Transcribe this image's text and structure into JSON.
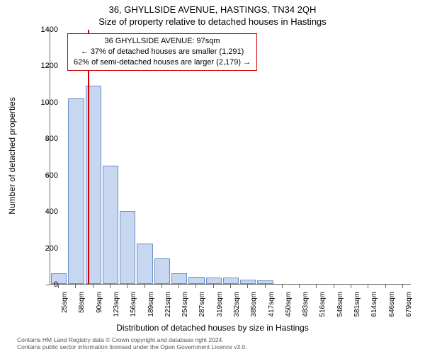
{
  "title_line1": "36, GHYLLSIDE AVENUE, HASTINGS, TN34 2QH",
  "title_line2": "Size of property relative to detached houses in Hastings",
  "info_box": {
    "line1": "36 GHYLLSIDE AVENUE: 97sqm",
    "line2": "← 37% of detached houses are smaller (1,291)",
    "line3": "62% of semi-detached houses are larger (2,179) →"
  },
  "y_axis": {
    "label": "Number of detached properties",
    "min": 0,
    "max": 1400,
    "tick_step": 200
  },
  "x_axis": {
    "label": "Distribution of detached houses by size in Hastings",
    "categories": [
      "25sqm",
      "58sqm",
      "90sqm",
      "123sqm",
      "156sqm",
      "189sqm",
      "221sqm",
      "254sqm",
      "287sqm",
      "319sqm",
      "352sqm",
      "385sqm",
      "417sqm",
      "450sqm",
      "483sqm",
      "516sqm",
      "548sqm",
      "581sqm",
      "614sqm",
      "646sqm",
      "679sqm"
    ]
  },
  "chart": {
    "type": "histogram",
    "bar_color": "#c7d7ef",
    "bar_border_color": "#6a8fc8",
    "background_color": "#ffffff",
    "vline_color": "#cc0000",
    "vline_x_category_index": 2.2,
    "values": [
      60,
      1020,
      1090,
      650,
      400,
      220,
      140,
      60,
      40,
      35,
      35,
      25,
      20,
      0,
      0,
      0,
      0,
      0,
      0,
      0,
      0
    ]
  },
  "footer": {
    "line1": "Contains HM Land Registry data © Crown copyright and database right 2024.",
    "line2": "Contains public sector information licensed under the Open Government Licence v3.0."
  },
  "style": {
    "title_fontsize": 13,
    "tick_fontsize": 11,
    "axis_label_fontsize": 12,
    "info_fontsize": 11,
    "footer_fontsize": 8.5,
    "footer_color": "#555555",
    "axis_color": "#666666",
    "text_color": "#000000"
  }
}
